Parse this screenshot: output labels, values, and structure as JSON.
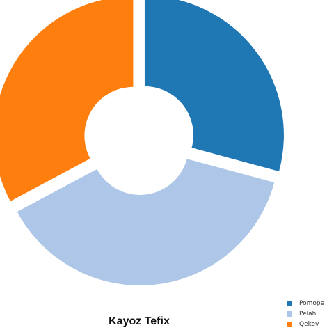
{
  "chart_data": {
    "type": "pie",
    "title": "Kayoz Tefix",
    "donut": true,
    "slices": [
      {
        "label": "Pomope",
        "value": 29.2,
        "color": "#1f77b4"
      },
      {
        "label": "Pelah",
        "value": 38.0,
        "color": "#aec7e8"
      },
      {
        "label": "Qekev",
        "value": 32.8,
        "color": "#ff7f0e"
      }
    ],
    "legend_position": "bottom-right"
  }
}
